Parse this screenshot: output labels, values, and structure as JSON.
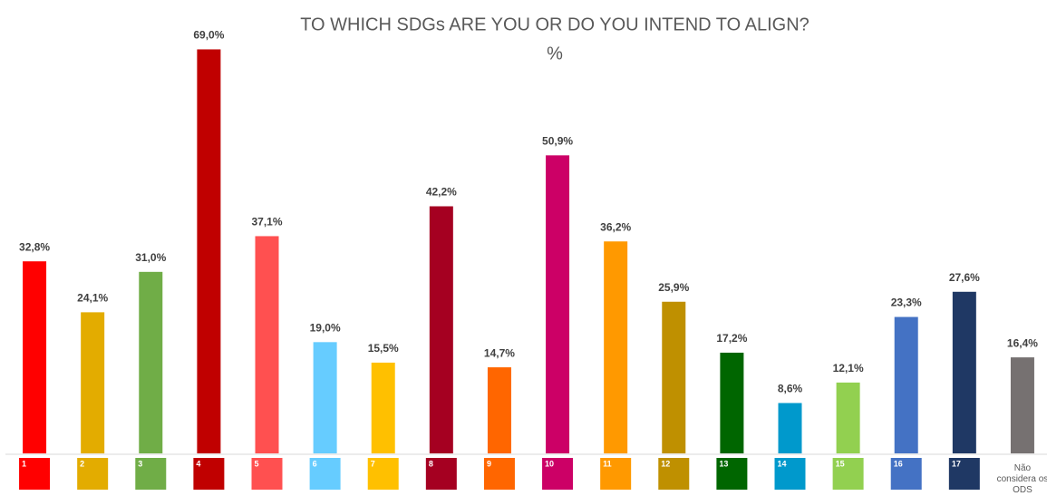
{
  "chart_data": {
    "type": "bar",
    "title": "TO WHICH SDGs ARE YOU OR DO YOU INTEND TO ALIGN?",
    "subtitle": "%",
    "categories": [
      "1",
      "2",
      "3",
      "4",
      "5",
      "6",
      "7",
      "8",
      "9",
      "10",
      "11",
      "12",
      "13",
      "14",
      "15",
      "16",
      "17",
      "Não considera os ODS"
    ],
    "values": [
      32.8,
      24.1,
      31.0,
      69.0,
      37.1,
      19.0,
      15.5,
      42.2,
      14.7,
      50.9,
      36.2,
      25.9,
      17.2,
      8.6,
      12.1,
      23.3,
      27.6,
      16.4
    ],
    "value_labels": [
      "32,8%",
      "24,1%",
      "31,0%",
      "69,0%",
      "37,1%",
      "19,0%",
      "15,5%",
      "42,2%",
      "14,7%",
      "50,9%",
      "36,2%",
      "25,9%",
      "17,2%",
      "8,6%",
      "12,1%",
      "23,3%",
      "27,6%",
      "16,4%"
    ],
    "colors": [
      "#ff0000",
      "#e3ac00",
      "#70ad47",
      "#c00000",
      "#ff5050",
      "#66ccff",
      "#ffc000",
      "#a50021",
      "#ff6600",
      "#cc0066",
      "#ff9900",
      "#bf9000",
      "#006600",
      "#0099cc",
      "#92d050",
      "#4472c4",
      "#1f3864",
      "#767171"
    ],
    "ylim": [
      0,
      70
    ]
  }
}
